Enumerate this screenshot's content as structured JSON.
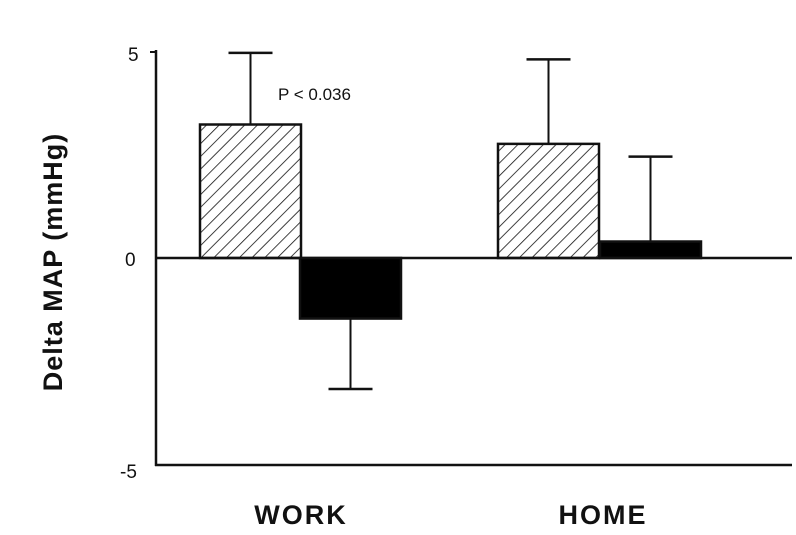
{
  "chart_data": {
    "type": "bar",
    "title": "",
    "xlabel": "",
    "ylabel": "Delta MAP (mmHg)",
    "ylim": [
      -5,
      5
    ],
    "yticks": [
      5,
      0,
      -5
    ],
    "categories": [
      "WORK",
      "HOME"
    ],
    "series": [
      {
        "pattern": "hatched",
        "color": "#ffffff",
        "values": [
          3.24,
          2.77
        ],
        "error_upper": [
          4.98,
          4.82
        ]
      },
      {
        "pattern": "solid",
        "color": "#000000",
        "values": [
          -1.47,
          0.4
        ],
        "error_extreme": [
          -3.18,
          2.46
        ]
      }
    ],
    "annotations": [
      "P < 0.036"
    ],
    "grid": false,
    "legend": "none"
  }
}
